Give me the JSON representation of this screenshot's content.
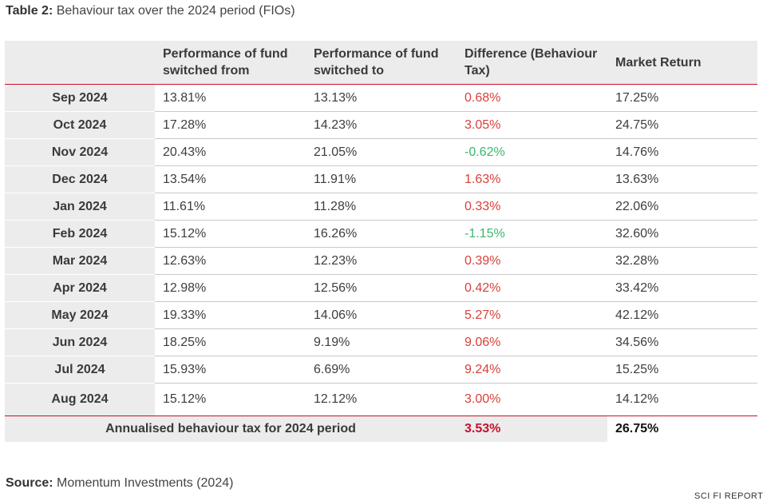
{
  "title": {
    "label": "Table 2:",
    "text": "Behaviour tax over the 2024 period (FIOs)"
  },
  "columns": [
    "",
    "Performance of fund switched from",
    "Performance of fund switched to",
    "Difference (Behaviour Tax)",
    "Market Return"
  ],
  "rows": [
    {
      "month": "Sep 2024",
      "from": "13.81%",
      "to": "13.13%",
      "difference": "0.68%",
      "market": "17.25%"
    },
    {
      "month": "Oct 2024",
      "from": "17.28%",
      "to": "14.23%",
      "difference": "3.05%",
      "market": "24.75%"
    },
    {
      "month": "Nov 2024",
      "from": "20.43%",
      "to": "21.05%",
      "difference": "-0.62%",
      "market": "14.76%"
    },
    {
      "month": "Dec 2024",
      "from": "13.54%",
      "to": "11.91%",
      "difference": "1.63%",
      "market": "13.63%"
    },
    {
      "month": "Jan 2024",
      "from": "11.61%",
      "to": "11.28%",
      "difference": "0.33%",
      "market": "22.06%"
    },
    {
      "month": "Feb 2024",
      "from": "15.12%",
      "to": "16.26%",
      "difference": "-1.15%",
      "market": "32.60%"
    },
    {
      "month": "Mar 2024",
      "from": "12.63%",
      "to": "12.23%",
      "difference": "0.39%",
      "market": "32.28%"
    },
    {
      "month": "Apr 2024",
      "from": "12.98%",
      "to": "12.56%",
      "difference": "0.42%",
      "market": "33.42%"
    },
    {
      "month": "May 2024",
      "from": "19.33%",
      "to": "14.06%",
      "difference": "5.27%",
      "market": "42.12%"
    },
    {
      "month": "Jun 2024",
      "from": "18.25%",
      "to": "9.19%",
      "difference": "9.06%",
      "market": "34.56%"
    },
    {
      "month": "Jul 2024",
      "from": "15.93%",
      "to": "6.69%",
      "difference": "9.24%",
      "market": "15.25%"
    },
    {
      "month": "Aug 2024",
      "from": "15.12%",
      "to": "12.12%",
      "difference": "3.00%",
      "market": "14.12%"
    }
  ],
  "summary": {
    "label": "Annualised behaviour tax for 2024 period",
    "tax": "3.53%",
    "market": "26.75%"
  },
  "source": {
    "label": "Source:",
    "text": "Momentum Investments (2024)"
  },
  "footer": {
    "brand": "SCI FI REPORT"
  },
  "colors": {
    "accent_red": "#c8102e",
    "positive_difference": "#d9403a",
    "negative_difference": "#3db56e",
    "header_background": "#ececec"
  }
}
